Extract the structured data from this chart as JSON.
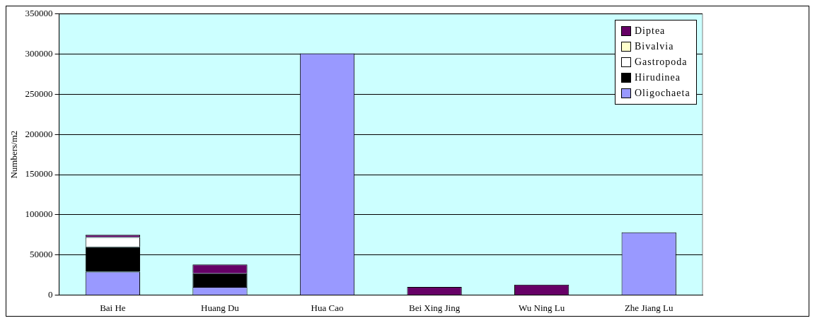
{
  "chart_data": {
    "type": "bar",
    "stacked": true,
    "ylabel": "Numbers/m2",
    "categories": [
      "Bai He",
      "Huang Du",
      "Hua Cao",
      "Bei Xing Jing",
      "Wu Ning Lu",
      "Zhe Jiang Lu"
    ],
    "series": [
      {
        "name": "Oligochaeta",
        "color": "#9999ff",
        "values": [
          29000,
          10000,
          301000,
          0,
          0,
          78000
        ]
      },
      {
        "name": "Hirudinea",
        "color": "#000000",
        "values": [
          31000,
          17000,
          0,
          0,
          0,
          0
        ]
      },
      {
        "name": "Gastropoda",
        "color": "#ffffff",
        "values": [
          12000,
          0,
          0,
          0,
          0,
          0
        ]
      },
      {
        "name": "Bivalvia",
        "color": "#ffffcc",
        "values": [
          0,
          0,
          0,
          0,
          0,
          0
        ]
      },
      {
        "name": "Diptea",
        "color": "#660066",
        "values": [
          3000,
          11000,
          0,
          10000,
          13000,
          0
        ]
      }
    ],
    "ylim": [
      0,
      350000
    ],
    "yticks": [
      0,
      50000,
      100000,
      150000,
      200000,
      250000,
      300000,
      350000
    ],
    "grid": "y",
    "legend": "top right"
  }
}
